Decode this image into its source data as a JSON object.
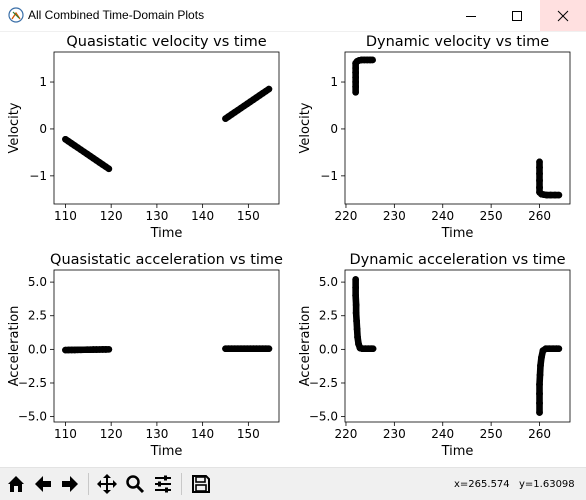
{
  "window": {
    "title": "All Combined Time-Domain Plots"
  },
  "toolbar": {
    "buttons": [
      {
        "name": "home",
        "icon": "home-icon"
      },
      {
        "name": "back",
        "icon": "arrow-left-icon"
      },
      {
        "name": "forward",
        "icon": "arrow-right-icon"
      },
      {
        "name": "pan",
        "icon": "move-icon"
      },
      {
        "name": "zoom",
        "icon": "zoom-icon"
      },
      {
        "name": "configure",
        "icon": "sliders-icon"
      },
      {
        "name": "save",
        "icon": "save-icon"
      }
    ],
    "x_readout": "x=265.574",
    "y_readout": "y=1.63098"
  },
  "chart_data": [
    {
      "type": "scatter",
      "title": "Quasistatic velocity vs time",
      "xlabel": "Time",
      "ylabel": "Velocity",
      "xlim": [
        107.5,
        156.7
      ],
      "ylim": [
        -1.6,
        1.64
      ],
      "xticks": [
        110,
        120,
        130,
        140,
        150
      ],
      "yticks": [
        -1,
        0,
        1
      ],
      "color": "#000000",
      "segments": [
        {
          "x": [
            110.0,
            119.5
          ],
          "y": [
            -0.22,
            -0.85
          ]
        },
        {
          "x": [
            145.0,
            154.5
          ],
          "y": [
            0.22,
            0.85
          ]
        }
      ]
    },
    {
      "type": "scatter",
      "title": "Dynamic velocity vs time",
      "xlabel": "Time",
      "ylabel": "Velocity",
      "xlim": [
        219.8,
        266.3
      ],
      "ylim": [
        -1.6,
        1.64
      ],
      "xticks": [
        220,
        230,
        240,
        250,
        260
      ],
      "yticks": [
        -1,
        0,
        1
      ],
      "color": "#000000",
      "points": [
        [
          222.0,
          0.78
        ],
        [
          222.0,
          0.9
        ],
        [
          222.0,
          1.0
        ],
        [
          222.0,
          1.1
        ],
        [
          222.0,
          1.2
        ],
        [
          222.0,
          1.3
        ],
        [
          222.0,
          1.4
        ],
        [
          222.3,
          1.44
        ],
        [
          222.7,
          1.46
        ],
        [
          223.2,
          1.47
        ],
        [
          223.8,
          1.47
        ],
        [
          224.4,
          1.47
        ],
        [
          225.0,
          1.47
        ],
        [
          225.5,
          1.47
        ],
        [
          260.0,
          -0.7
        ],
        [
          260.0,
          -0.82
        ],
        [
          260.0,
          -0.95
        ],
        [
          260.0,
          -1.1
        ],
        [
          260.0,
          -1.25
        ],
        [
          260.0,
          -1.35
        ],
        [
          260.4,
          -1.39
        ],
        [
          260.9,
          -1.4
        ],
        [
          261.5,
          -1.41
        ],
        [
          262.3,
          -1.41
        ],
        [
          263.2,
          -1.41
        ],
        [
          264.0,
          -1.41
        ]
      ]
    },
    {
      "type": "scatter",
      "title": "Quasistatic acceleration vs time",
      "xlabel": "Time",
      "ylabel": "Acceleration",
      "xlim": [
        107.5,
        156.7
      ],
      "ylim": [
        -5.4,
        5.9
      ],
      "xticks": [
        110,
        120,
        130,
        140,
        150
      ],
      "yticks": [
        -5.0,
        -2.5,
        0.0,
        2.5,
        5.0
      ],
      "color": "#000000",
      "segments": [
        {
          "x": [
            110.0,
            119.5
          ],
          "y": [
            -0.05,
            0.0
          ]
        },
        {
          "x": [
            145.0,
            154.5
          ],
          "y": [
            0.05,
            0.05
          ]
        }
      ]
    },
    {
      "type": "scatter",
      "title": "Dynamic acceleration vs time",
      "xlabel": "Time",
      "ylabel": "Acceleration",
      "xlim": [
        219.8,
        266.3
      ],
      "ylim": [
        -5.4,
        5.9
      ],
      "xticks": [
        220,
        230,
        240,
        250,
        260
      ],
      "yticks": [
        -5.0,
        -2.5,
        0.0,
        2.5,
        5.0
      ],
      "color": "#000000",
      "points": [
        [
          222.0,
          5.2
        ],
        [
          222.0,
          4.6
        ],
        [
          222.0,
          4.0
        ],
        [
          222.1,
          3.3
        ],
        [
          222.1,
          2.7
        ],
        [
          222.2,
          2.1
        ],
        [
          222.3,
          1.5
        ],
        [
          222.4,
          0.9
        ],
        [
          222.6,
          0.4
        ],
        [
          222.9,
          0.1
        ],
        [
          223.4,
          0.05
        ],
        [
          224.0,
          0.05
        ],
        [
          224.6,
          0.05
        ],
        [
          225.2,
          0.05
        ],
        [
          225.6,
          0.05
        ],
        [
          260.0,
          -4.7
        ],
        [
          260.0,
          -4.0
        ],
        [
          260.0,
          -3.3
        ],
        [
          260.0,
          -2.6
        ],
        [
          260.1,
          -1.9
        ],
        [
          260.2,
          -1.2
        ],
        [
          260.4,
          -0.6
        ],
        [
          260.7,
          -0.1
        ],
        [
          261.3,
          0.05
        ],
        [
          262.0,
          0.05
        ],
        [
          262.8,
          0.05
        ],
        [
          263.5,
          0.05
        ],
        [
          264.0,
          0.05
        ]
      ]
    }
  ]
}
